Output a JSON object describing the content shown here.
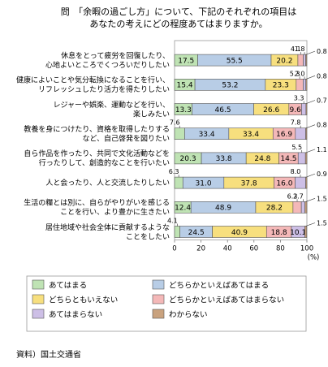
{
  "chart_data": {
    "type": "bar",
    "stacked": "horizontal-100%",
    "title_lines": [
      "問　「余暇の過ごし方」について、下記のそれぞれの項目は",
      "あなたの考えにどの程度あてはまりますか。"
    ],
    "categories": [
      [
        "休息をとって疲労を回復したり、",
        "心地よいところでくつろいだりしたい"
      ],
      [
        "健康によいことや気分転換になることを行い、",
        "リフレッシュしたり活力を得たりしたい"
      ],
      [
        "レジャーや娯楽、運動などを行い、",
        "楽しみたい"
      ],
      [
        "教養を身につけたり、資格を取得したりする",
        "など、自己啓発を図りたい"
      ],
      [
        "自ら作品を作ったり、共同で文化活動などを",
        "行ったりして、創造的なことを行いたい"
      ],
      [
        "人と会ったり、人と交流したりしたい"
      ],
      [
        "生活の糧とは別に、自らがやりがいを感じる",
        "ことを行い、より豊かに生きたい"
      ],
      [
        "居住地域や社会全体に貢献するような",
        "ことをしたい"
      ]
    ],
    "series": [
      {
        "name": "あてはまる",
        "color": "#bfe3b4",
        "values": [
          17.5,
          15.4,
          13.3,
          7.6,
          20.3,
          6.3,
          12.4,
          4.1
        ]
      },
      {
        "name": "どちらかといえばあてはまる",
        "color": "#b8cde6",
        "values": [
          55.5,
          53.2,
          46.5,
          33.4,
          33.8,
          31.0,
          48.9,
          24.5
        ]
      },
      {
        "name": "どちらともいえない",
        "color": "#f7df7e",
        "values": [
          20.2,
          23.3,
          26.6,
          33.4,
          24.8,
          37.8,
          28.2,
          40.9
        ]
      },
      {
        "name": "どちらかといえばあてはまらない",
        "color": "#f4b8b8",
        "values": [
          4.1,
          5.3,
          9.6,
          16.9,
          14.5,
          16.0,
          6.3,
          18.8
        ]
      },
      {
        "name": "あてはまらない",
        "color": "#cdbfe6",
        "values": [
          1.8,
          2.0,
          3.3,
          7.8,
          5.5,
          8.0,
          2.7,
          10.1
        ]
      },
      {
        "name": "わからない",
        "color": "#c9a27e",
        "values": [
          0.8,
          0.8,
          0.7,
          0.8,
          1.1,
          0.9,
          1.5,
          1.5
        ]
      }
    ],
    "xlim": [
      0,
      100
    ],
    "xticks": [
      "0",
      "20",
      "40",
      "60",
      "80",
      "100"
    ],
    "x_unit": "(%)",
    "legend_position": "bottom",
    "legend_columns": 2
  },
  "source": "資料）国土交通省"
}
